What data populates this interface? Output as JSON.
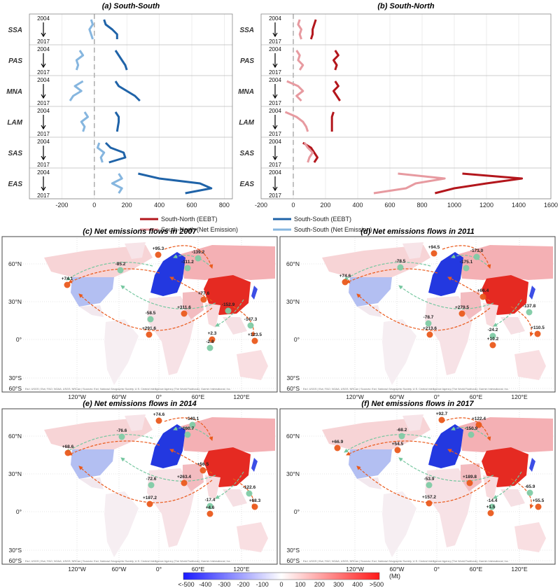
{
  "chart_data": [
    {
      "type": "line",
      "title": "(a) South-South",
      "row_start": "2004",
      "row_end": "2017",
      "series": [
        {
          "name": "South-South (EEBT)",
          "color": "#1f63a8"
        },
        {
          "name": "South-South (Net Emission)",
          "color": "#86b6df"
        }
      ],
      "rows": [
        {
          "label": "SSA",
          "values": [
            [
              60,
              70,
              110,
              140,
              140
            ],
            [
              -20,
              -10,
              -30,
              -20,
              -10
            ]
          ]
        },
        {
          "label": "PAS",
          "values": [
            [
              130,
              150,
              170,
              190,
              200
            ],
            [
              -90,
              -70,
              -110,
              -100,
              -110
            ]
          ]
        },
        {
          "label": "MNA",
          "values": [
            [
              130,
              150,
              200,
              250,
              280
            ],
            [
              -70,
              -120,
              -80,
              -130,
              -150
            ]
          ]
        },
        {
          "label": "LAM",
          "values": [
            [
              130,
              150,
              150,
              145,
              140
            ],
            [
              -60,
              -40,
              -80,
              -60,
              -70
            ]
          ]
        },
        {
          "label": "SAS",
          "values": [
            [
              70,
              100,
              180,
              190,
              90
            ],
            [
              30,
              20,
              60,
              40,
              50
            ]
          ]
        },
        {
          "label": "EAS",
          "values": [
            [
              270,
              400,
              650,
              720,
              560
            ],
            [
              150,
              170,
              110,
              170,
              150
            ]
          ]
        }
      ],
      "xlim": [
        -400,
        850
      ],
      "xticks": [
        -200,
        0,
        200,
        400,
        600,
        800
      ]
    },
    {
      "type": "line",
      "title": "(b) South-North",
      "row_start": "2004",
      "row_end": "2017",
      "series": [
        {
          "name": "South-North (EEBT)",
          "color": "#b3161c"
        },
        {
          "name": "South-North (Net Emission)",
          "color": "#e79aa0"
        }
      ],
      "rows": [
        {
          "label": "SSA",
          "values": [
            [
              140,
              130,
              120,
              120,
              110
            ],
            [
              40,
              30,
              50,
              40,
              50
            ]
          ]
        },
        {
          "label": "PAS",
          "values": [
            [
              260,
              280,
              250,
              270,
              260
            ],
            [
              20,
              40,
              30,
              60,
              40
            ]
          ]
        },
        {
          "label": "MNA",
          "values": [
            [
              260,
              280,
              250,
              270,
              290
            ],
            [
              -40,
              30,
              60,
              20,
              50
            ]
          ]
        },
        {
          "label": "LAM",
          "values": [
            [
              250,
              240,
              240,
              240,
              240
            ],
            [
              -50,
              20,
              60,
              80,
              90
            ]
          ]
        },
        {
          "label": "SAS",
          "values": [
            [
              60,
              110,
              130,
              150,
              130
            ],
            [
              70,
              90,
              120,
              100,
              90
            ]
          ]
        },
        {
          "label": "EAS",
          "values": [
            [
              1050,
              1420,
              1200,
              1000,
              880
            ],
            [
              650,
              940,
              760,
              700,
              500
            ]
          ]
        }
      ],
      "xlim": [
        -200,
        1600
      ],
      "xticks": [
        -200,
        0,
        200,
        400,
        600,
        800,
        1000,
        1200,
        1400,
        1600
      ]
    }
  ],
  "maps": [
    {
      "title": "(c) Net emissions flows in 2007",
      "flows": [
        "+95.3",
        "-139.2",
        "-111.2",
        "-85.2",
        "+74.1",
        "+77.6",
        "-152.9",
        "+311.6",
        "-58.5",
        "-147.3",
        "+291.6",
        "+2.3",
        "+123.5",
        "-2.8"
      ]
    },
    {
      "title": "(d) Net emissions flows in 2011",
      "flows": [
        "+94.5",
        "-173.0",
        "-175.1",
        "-78.5",
        "+74.6",
        "+66.4",
        "+279.5",
        "-78.7",
        "-137.8",
        "+213.6",
        "-24.2",
        "+110.5",
        "+10.2"
      ]
    },
    {
      "title": "(e) Net emissions flows in 2014",
      "flows": [
        "+74.6",
        "-140.1",
        "-160.7",
        "-76.6",
        "+68.6",
        "+56.5",
        "+263.4",
        "-72.6",
        "-122.6",
        "+187.2",
        "-17.4",
        "+68.3",
        "+4.6"
      ]
    },
    {
      "title": "(f) Net emissions flows in 2017",
      "flows": [
        "+92.7",
        "+122.4",
        "-150.9",
        "-68.2",
        "+66.9",
        "+54.5",
        "+189.8",
        "-53.9",
        "-65.9",
        "+157.2",
        "-14.4",
        "+55.5",
        "+1.5"
      ]
    }
  ],
  "map_lat_labels": [
    "60°N",
    "30°N",
    "0°",
    "30°S",
    "60°S"
  ],
  "map_lon_labels": [
    "120°W",
    "60°W",
    "0°",
    "60°E",
    "120°E"
  ],
  "map_credit": "Esri, USGS | Esri, FAO, NOAA, USGS, NRCan | Sources: Esri, National Geographic Society, U.S. Central Intelligence Agency (The World Factbook), Garmin International, Inc.",
  "colorbar": {
    "labels": [
      "<-500",
      "-400",
      "-300",
      "-200",
      "-100",
      "0",
      "100",
      "200",
      "300",
      "400",
      ">500"
    ],
    "unit": "(Mt)"
  }
}
